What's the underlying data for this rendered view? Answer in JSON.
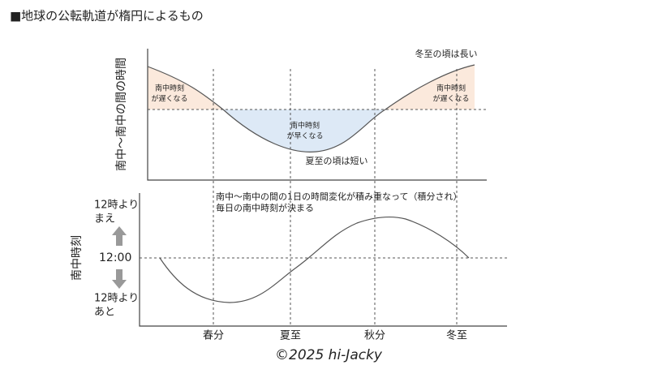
{
  "title": "■地球の公転軌道が楕円によるもの",
  "top_panel": {
    "y_label": "南中～南中の間の時間",
    "long_note": "冬至の頃は長い",
    "short_note": "夏至の頃は短い",
    "late_left": [
      "南中時刻",
      "が遅くなる"
    ],
    "late_right": [
      "南中時刻",
      "が遅くなる"
    ],
    "early": [
      "南中時刻",
      "が早くなる"
    ]
  },
  "bottom_panel": {
    "y_label": "南中時刻",
    "note": [
      "南中～南中の間の1日の時間変化が積み重なって（積分され）",
      "毎日の南中時刻が決まる"
    ],
    "before": [
      "12時より",
      "まえ"
    ],
    "noon": "12:00",
    "after": [
      "12時より",
      "あと"
    ]
  },
  "x_labels": [
    "春分",
    "夏至",
    "秋分",
    "冬至"
  ],
  "credit": "©2025 hi-Jacky"
}
